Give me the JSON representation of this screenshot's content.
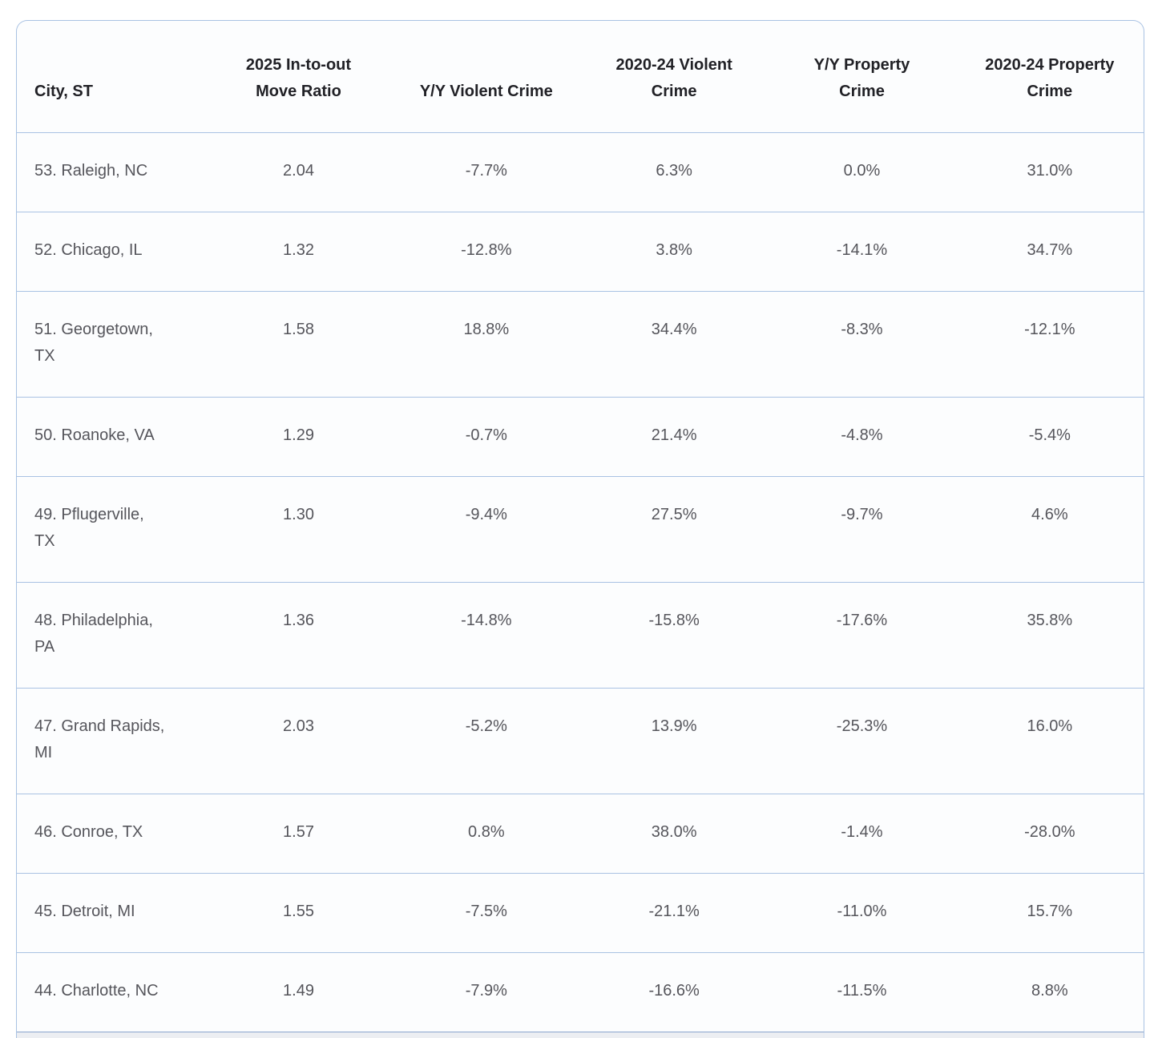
{
  "chart_data": {
    "type": "table",
    "title": "",
    "columns": [
      "City, ST",
      "2025 In-to-out\nMove Ratio",
      "Y/Y Violent Crime",
      "2020-24 Violent\nCrime",
      "Y/Y Property\nCrime",
      "2020-24 Property\nCrime"
    ],
    "rows": [
      [
        "53. Raleigh, NC",
        "2.04",
        "-7.7%",
        "6.3%",
        "0.0%",
        "31.0%"
      ],
      [
        "52. Chicago, IL",
        "1.32",
        "-12.8%",
        "3.8%",
        "-14.1%",
        "34.7%"
      ],
      [
        "51. Georgetown,\nTX",
        "1.58",
        "18.8%",
        "34.4%",
        "-8.3%",
        "-12.1%"
      ],
      [
        "50. Roanoke, VA",
        "1.29",
        "-0.7%",
        "21.4%",
        "-4.8%",
        "-5.4%"
      ],
      [
        "49. Pflugerville,\nTX",
        "1.30",
        "-9.4%",
        "27.5%",
        "-9.7%",
        "4.6%"
      ],
      [
        "48. Philadelphia,\nPA",
        "1.36",
        "-14.8%",
        "-15.8%",
        "-17.6%",
        "35.8%"
      ],
      [
        "47. Grand Rapids,\nMI",
        "2.03",
        "-5.2%",
        "13.9%",
        "-25.3%",
        "16.0%"
      ],
      [
        "46. Conroe, TX",
        "1.57",
        "0.8%",
        "38.0%",
        "-1.4%",
        "-28.0%"
      ],
      [
        "45. Detroit, MI",
        "1.55",
        "-7.5%",
        "-21.1%",
        "-11.0%",
        "15.7%"
      ],
      [
        "44. Charlotte, NC",
        "1.49",
        "-7.9%",
        "-16.6%",
        "-11.5%",
        "8.8%"
      ]
    ],
    "layout": {
      "grid": "horizontal-row-separators-only",
      "header_align": "bottom"
    }
  },
  "colors": {
    "accent_border": "#a9c2e3",
    "header_text": "#212126",
    "cell_text": "#55555b",
    "card_background": "#fcfdfe",
    "partial_next_row_background": "#eceef2"
  }
}
